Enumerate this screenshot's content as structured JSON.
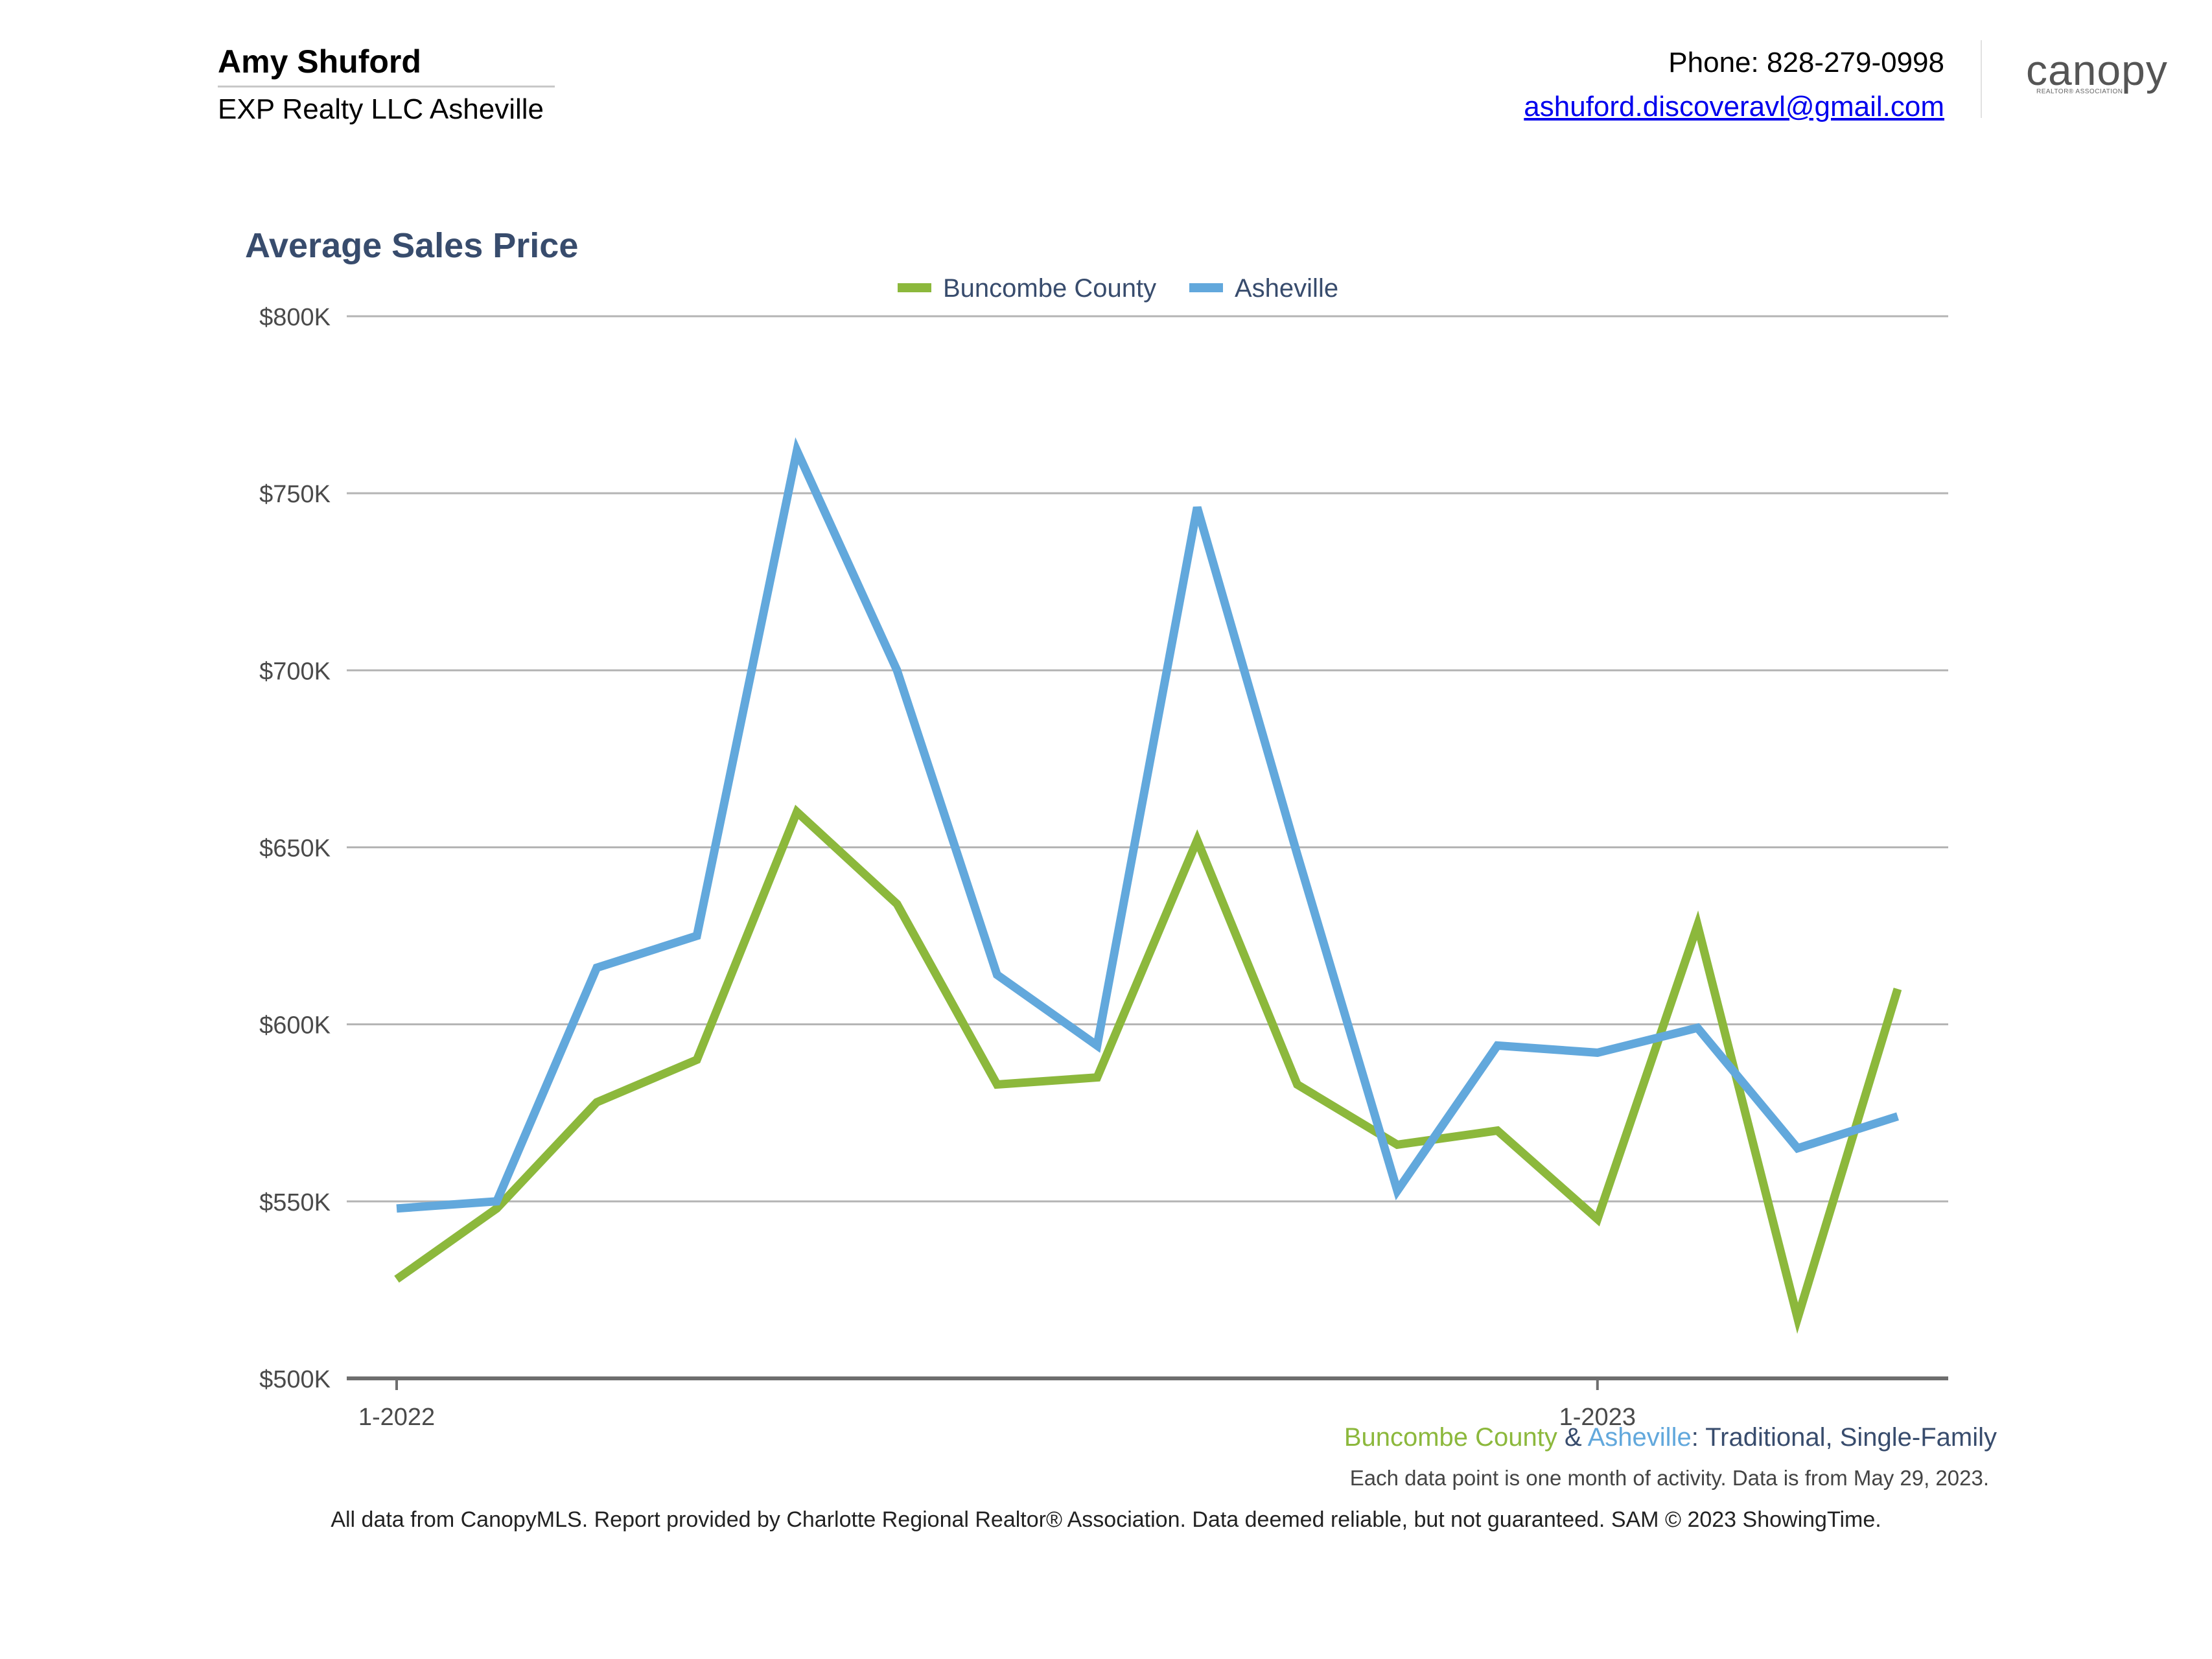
{
  "header": {
    "agent_name": "Amy Shuford",
    "company": "EXP Realty LLC Asheville",
    "phone": "Phone: 828-279-0998",
    "email": "ashuford.discoveravl@gmail.com",
    "logo_text": "canopy",
    "logo_subtext": "REALTOR® ASSOCIATION"
  },
  "colors": {
    "buncombe": "#8cb83c",
    "asheville": "#62a8dc",
    "title": "#384c6d"
  },
  "chart_data": {
    "type": "line",
    "title": "Average Sales Price",
    "xlabel": "",
    "ylabel": "",
    "x": [
      "1-2022",
      "2-2022",
      "3-2022",
      "4-2022",
      "5-2022",
      "6-2022",
      "7-2022",
      "8-2022",
      "9-2022",
      "10-2022",
      "11-2022",
      "12-2022",
      "1-2023",
      "2-2023",
      "3-2023",
      "4-2023"
    ],
    "x_tick_labels": [
      "1-2022",
      "1-2023"
    ],
    "y_tick_labels": [
      "$500K",
      "$550K",
      "$600K",
      "$650K",
      "$700K",
      "$750K",
      "$800K"
    ],
    "ylim": [
      500000,
      800000
    ],
    "grid": true,
    "legend": "top-center",
    "series": [
      {
        "name": "Buncombe County",
        "color": "#8cb83c",
        "values": [
          528000,
          548000,
          578000,
          590000,
          660000,
          634000,
          583000,
          585000,
          652000,
          583000,
          566000,
          570000,
          545000,
          628000,
          517000,
          610000
        ]
      },
      {
        "name": "Asheville",
        "color": "#62a8dc",
        "values": [
          548000,
          550000,
          616000,
          625000,
          762000,
          700000,
          614000,
          594000,
          746000,
          648000,
          553000,
          594000,
          592000,
          599000,
          565000,
          574000
        ]
      }
    ]
  },
  "footer": {
    "legend_buncombe": "Buncombe County",
    "legend_amp": "&",
    "legend_asheville": "Asheville",
    "legend_rest": ": Traditional, Single-Family",
    "note": "Each data point is one month of activity. Data is from May 29, 2023.",
    "disclaimer": "All data from CanopyMLS. Report provided by Charlotte Regional Realtor® Association. Data deemed reliable, but not guaranteed. SAM © 2023 ShowingTime."
  }
}
